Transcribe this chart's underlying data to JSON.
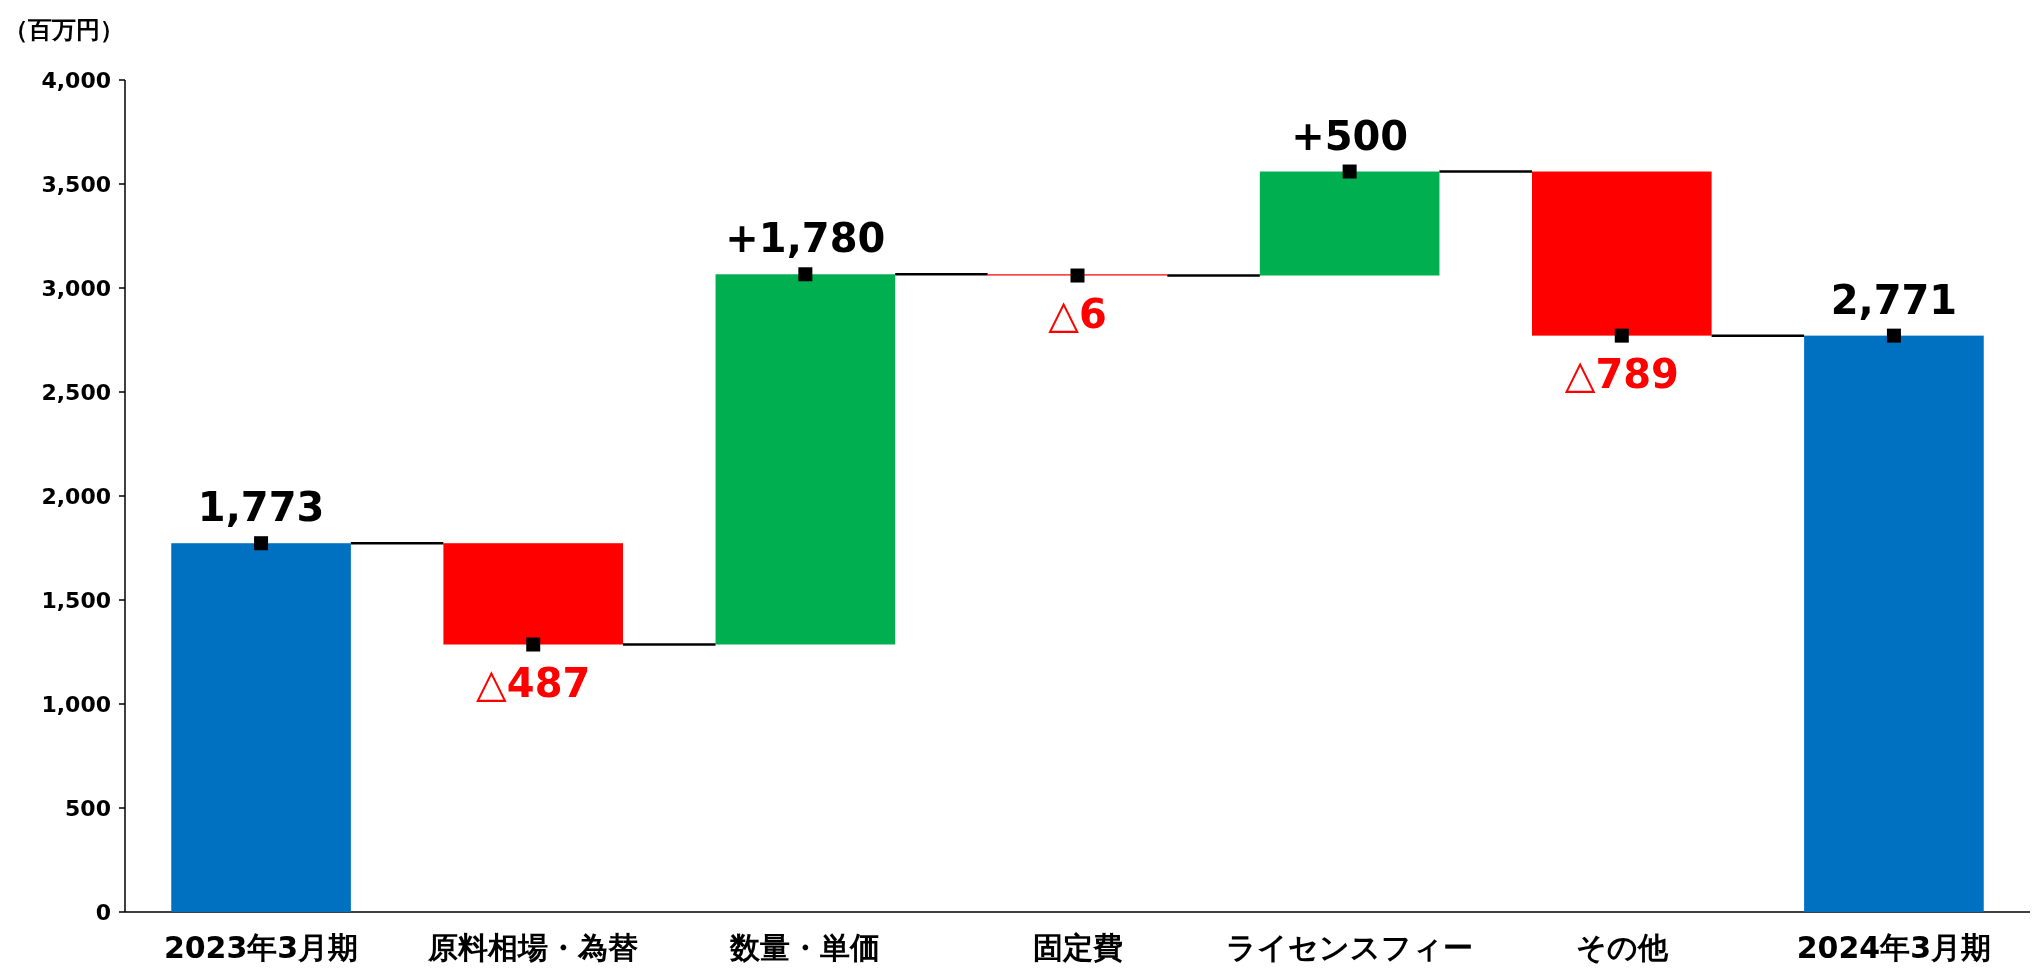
{
  "chart_data": {
    "type": "bar",
    "ylabel": "（百万円）",
    "categories": [
      "2023年3月期",
      "原料相場・為替",
      "数量・単価",
      "固定費",
      "ライセンスフィー",
      "その他",
      "2024年3月期"
    ],
    "series": [
      {
        "values": [
          1773,
          -487,
          1780,
          -6,
          500,
          -789,
          2771
        ],
        "base": [
          0,
          1773,
          1286,
          3066,
          3060,
          3560,
          0
        ],
        "colors": [
          "#0070c0",
          "#ff0000",
          "#00b050",
          "#ff0000",
          "#00b050",
          "#ff0000",
          "#0070c0"
        ],
        "value_labels": [
          "1,773",
          "△487",
          "+1,780",
          "△6",
          "+500",
          "△789",
          "2,771"
        ]
      },
      {
        "type": "scatter",
        "color": "#000000",
        "marker": "square",
        "values": [
          1773,
          1286,
          3066,
          3060,
          3560,
          2771,
          2771
        ]
      }
    ],
    "ylim": [
      0,
      4000
    ],
    "yticks": [
      0,
      500,
      {
        "value": 1000,
        "label": "1,000"
      },
      {
        "value": 1500,
        "label": "1,500"
      },
      {
        "value": 2000,
        "label": "2,000"
      },
      {
        "value": 2500,
        "label": "2,500"
      },
      {
        "value": 3000,
        "label": "3,000"
      },
      {
        "value": 3500,
        "label": "3,500"
      },
      {
        "value": 4000,
        "label": "4,000"
      }
    ]
  }
}
